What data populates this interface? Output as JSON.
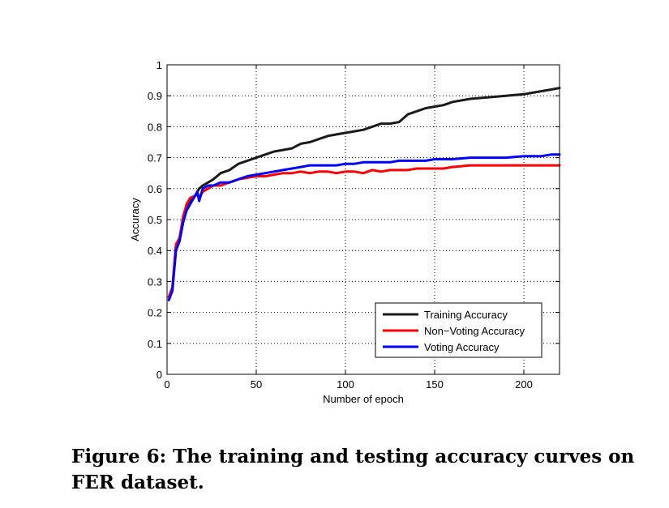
{
  "caption": "Figure 6: The training and testing accuracy curves on FER dataset.",
  "chart_data": {
    "type": "line",
    "title": "",
    "xlabel": "Number of epoch",
    "ylabel": "Accuracy",
    "xlim": [
      0,
      220
    ],
    "ylim": [
      0,
      1
    ],
    "xticks": [
      0,
      50,
      100,
      150,
      200
    ],
    "yticks": [
      0,
      0.1,
      0.2,
      0.3,
      0.4,
      0.5,
      0.6,
      0.7,
      0.8,
      0.9,
      1
    ],
    "ytick_labels": [
      "0",
      "0.1",
      "0.2",
      "0.3",
      "0.4",
      "0.5",
      "0.6",
      "0.7",
      "0.8",
      "0.9",
      "1"
    ],
    "grid": true,
    "legend_position": "bottom-right",
    "series": [
      {
        "name": "Training Accuracy",
        "color": "#1a1a1a",
        "x": [
          1,
          3,
          5,
          7,
          9,
          11,
          13,
          15,
          17,
          18,
          20,
          23,
          26,
          30,
          35,
          40,
          45,
          50,
          55,
          60,
          65,
          70,
          75,
          80,
          85,
          90,
          95,
          100,
          105,
          110,
          115,
          120,
          125,
          130,
          135,
          140,
          145,
          150,
          155,
          160,
          170,
          180,
          190,
          200,
          205,
          210,
          215,
          220
        ],
        "y": [
          0.25,
          0.28,
          0.41,
          0.44,
          0.5,
          0.53,
          0.56,
          0.57,
          0.59,
          0.6,
          0.61,
          0.62,
          0.63,
          0.65,
          0.66,
          0.68,
          0.69,
          0.7,
          0.71,
          0.72,
          0.725,
          0.73,
          0.745,
          0.75,
          0.76,
          0.77,
          0.775,
          0.78,
          0.785,
          0.79,
          0.8,
          0.81,
          0.81,
          0.815,
          0.84,
          0.85,
          0.86,
          0.865,
          0.87,
          0.88,
          0.89,
          0.895,
          0.9,
          0.905,
          0.91,
          0.915,
          0.92,
          0.925
        ]
      },
      {
        "name": "Non−Voting Accuracy",
        "color": "#ff0000",
        "x": [
          1,
          3,
          5,
          7,
          9,
          11,
          13,
          15,
          17,
          18,
          20,
          23,
          26,
          30,
          35,
          40,
          45,
          50,
          55,
          60,
          65,
          70,
          75,
          80,
          85,
          90,
          95,
          100,
          105,
          110,
          115,
          120,
          125,
          130,
          135,
          140,
          145,
          150,
          155,
          160,
          170,
          180,
          190,
          200,
          205,
          210,
          215,
          220
        ],
        "y": [
          0.25,
          0.28,
          0.42,
          0.44,
          0.51,
          0.55,
          0.57,
          0.575,
          0.58,
          0.57,
          0.59,
          0.6,
          0.61,
          0.61,
          0.62,
          0.63,
          0.635,
          0.64,
          0.64,
          0.645,
          0.65,
          0.65,
          0.655,
          0.65,
          0.655,
          0.655,
          0.65,
          0.655,
          0.655,
          0.65,
          0.66,
          0.655,
          0.66,
          0.66,
          0.66,
          0.665,
          0.665,
          0.665,
          0.665,
          0.67,
          0.675,
          0.675,
          0.675,
          0.675,
          0.675,
          0.675,
          0.675,
          0.675
        ]
      },
      {
        "name": "Voting Accuracy",
        "color": "#0000ff",
        "x": [
          1,
          3,
          5,
          7,
          9,
          11,
          13,
          15,
          17,
          18,
          20,
          23,
          26,
          30,
          35,
          40,
          45,
          50,
          55,
          60,
          65,
          70,
          75,
          80,
          85,
          90,
          95,
          100,
          105,
          110,
          115,
          120,
          125,
          130,
          135,
          140,
          145,
          150,
          155,
          160,
          170,
          180,
          190,
          200,
          205,
          210,
          215,
          220
        ],
        "y": [
          0.24,
          0.27,
          0.4,
          0.43,
          0.49,
          0.53,
          0.55,
          0.57,
          0.59,
          0.56,
          0.6,
          0.61,
          0.61,
          0.62,
          0.62,
          0.63,
          0.64,
          0.645,
          0.65,
          0.655,
          0.66,
          0.665,
          0.67,
          0.675,
          0.675,
          0.675,
          0.675,
          0.68,
          0.68,
          0.685,
          0.685,
          0.685,
          0.685,
          0.69,
          0.69,
          0.69,
          0.69,
          0.695,
          0.695,
          0.695,
          0.7,
          0.7,
          0.7,
          0.705,
          0.705,
          0.705,
          0.71,
          0.71
        ]
      }
    ]
  }
}
